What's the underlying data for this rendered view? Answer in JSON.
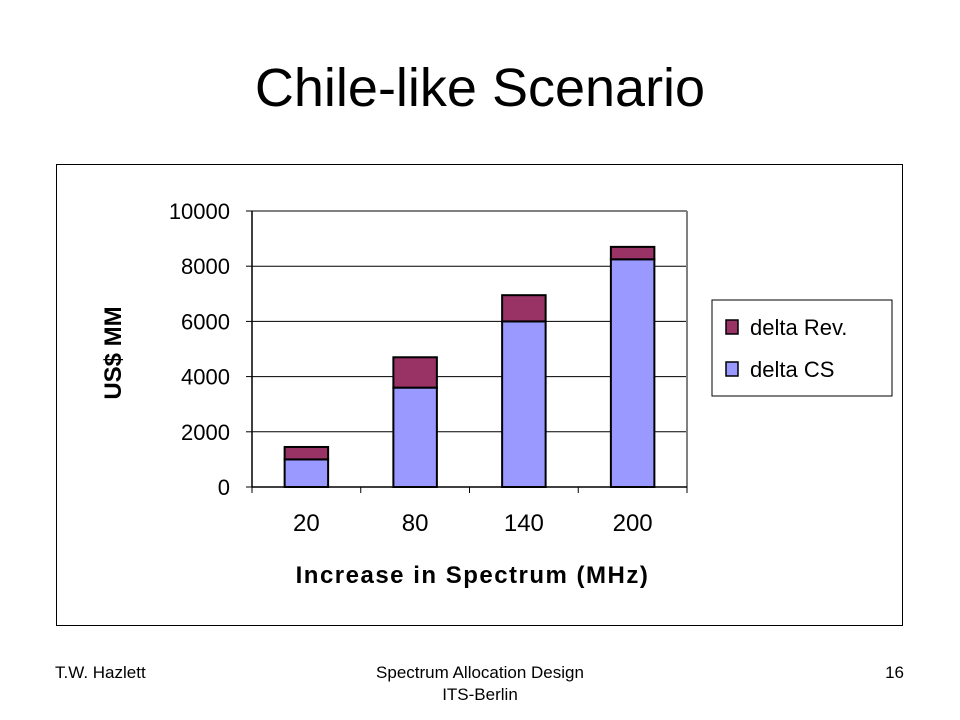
{
  "slide": {
    "title": "Chile-like Scenario",
    "footer_left": "T.W. Hazlett",
    "footer_center_line1": "Spectrum Allocation Design",
    "footer_center_line2": "ITS-Berlin",
    "footer_right": "16"
  },
  "chart_data": {
    "type": "bar",
    "stacked": true,
    "categories": [
      "20",
      "80",
      "140",
      "200"
    ],
    "series": [
      {
        "name": "delta CS",
        "values": [
          1000,
          3600,
          6000,
          8250
        ],
        "color": "#9999ff"
      },
      {
        "name": "delta Rev.",
        "values": [
          450,
          1100,
          950,
          450
        ],
        "color": "#993366"
      }
    ],
    "title": "",
    "xlabel": "Increase in Spectrum (MHz)",
    "ylabel": "US$ MM",
    "ylim": [
      0,
      10000
    ],
    "yticks": [
      "0",
      "2000",
      "4000",
      "6000",
      "8000",
      "10000"
    ],
    "grid": true,
    "legend_position": "right",
    "legend_order": [
      "delta Rev.",
      "delta CS"
    ]
  }
}
